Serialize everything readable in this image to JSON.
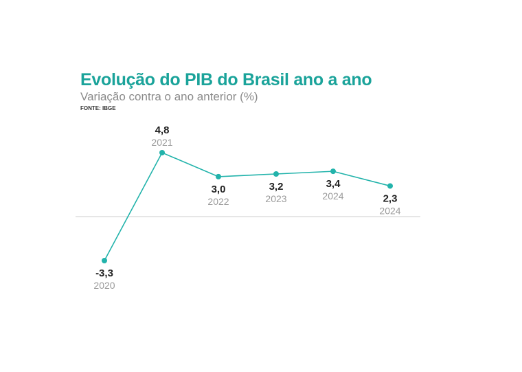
{
  "title": "Evolução do PIB do Brasil ano a ano",
  "subtitle": "Variação contra o ano anterior (%)",
  "source": "FONTE: IBGE",
  "colors": {
    "accent": "#1aa39a",
    "line": "#22b3ab",
    "baseline": "#cccccc"
  },
  "chart_data": {
    "type": "line",
    "title": "Evolução do PIB do Brasil ano a ano",
    "subtitle": "Variação contra o ano anterior (%)",
    "xlabel": "",
    "ylabel": "",
    "categories": [
      "2020",
      "2021",
      "2022",
      "2023",
      "2024",
      "2024"
    ],
    "values": [
      -3.3,
      4.8,
      3.0,
      3.2,
      3.4,
      2.3
    ],
    "value_labels": [
      "-3,3",
      "4,8",
      "3,0",
      "3,2",
      "3,4",
      "2,3"
    ],
    "label_positions": [
      "below",
      "above",
      "below",
      "below",
      "below",
      "below"
    ],
    "ylim": [
      -3.3,
      4.8
    ],
    "grid": false,
    "baseline": 0
  }
}
